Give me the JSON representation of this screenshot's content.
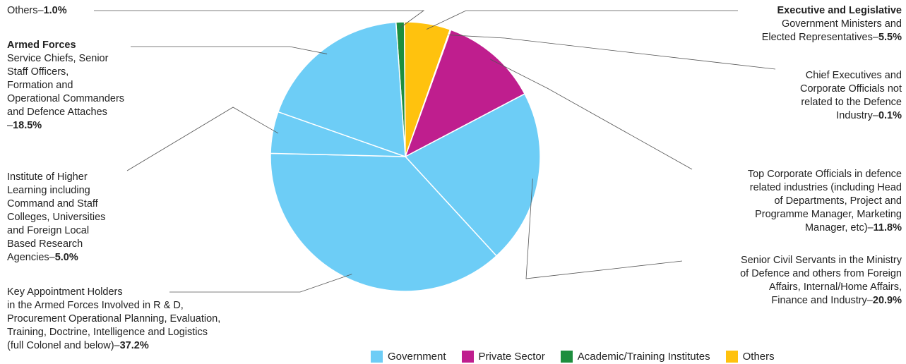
{
  "chart_data": {
    "type": "pie",
    "colors": {
      "Government": "#6dcdf6",
      "Private Sector": "#bf1e8e",
      "Academic/Training Institutes": "#1e8e3e",
      "Others": "#ffc20e"
    },
    "slices": [
      {
        "lines": [
          "Others"
        ],
        "value": 1.0,
        "category": "Academic/Training Institutes"
      },
      {
        "head": "Executive and Legislative",
        "lines": [
          "Government Ministers and",
          "Elected Representatives"
        ],
        "value": 5.5,
        "category": "Others"
      },
      {
        "lines": [
          "Chief Executives and",
          "Corporate Officials not",
          "related to the Defence",
          "Industry"
        ],
        "value": 0.1,
        "category": "Private Sector"
      },
      {
        "lines": [
          "Top Corporate Officials in defence",
          "related industries (including Head",
          "of Departments, Project and",
          "Programme Manager, Marketing",
          "Manager, etc)"
        ],
        "value": 11.8,
        "category": "Private Sector"
      },
      {
        "lines": [
          "Senior Civil Servants in the Ministry",
          "of Defence and others from Foreign",
          "Affairs, Internal/Home Affairs,",
          "Finance and Industry"
        ],
        "value": 20.9,
        "category": "Government"
      },
      {
        "lines": [
          "Key Appointment Holders",
          "in the Armed Forces Involved in R & D,",
          "Procurement Operational Planning, Evaluation,",
          "Training, Doctrine, Intelligence and Logistics",
          "(full Colonel and below)"
        ],
        "value": 37.2,
        "category": "Government"
      },
      {
        "lines": [
          "Institute of Higher",
          "Learning including",
          "Command and Staff",
          "Colleges, Universities",
          "and Foreign Local",
          "Based Research",
          "Agencies"
        ],
        "value": 5.0,
        "category": "Government"
      },
      {
        "head": "Armed Forces",
        "lines": [
          "Service Chiefs, Senior",
          "Staff Officers,",
          "Formation and",
          "Operational Commanders",
          "and Defence Attaches",
          ""
        ],
        "value": 18.5,
        "category": "Government"
      }
    ],
    "legend": [
      "Government",
      "Private Sector",
      "Academic/Training Institutes",
      "Others"
    ],
    "legend_placement": "bottom"
  }
}
